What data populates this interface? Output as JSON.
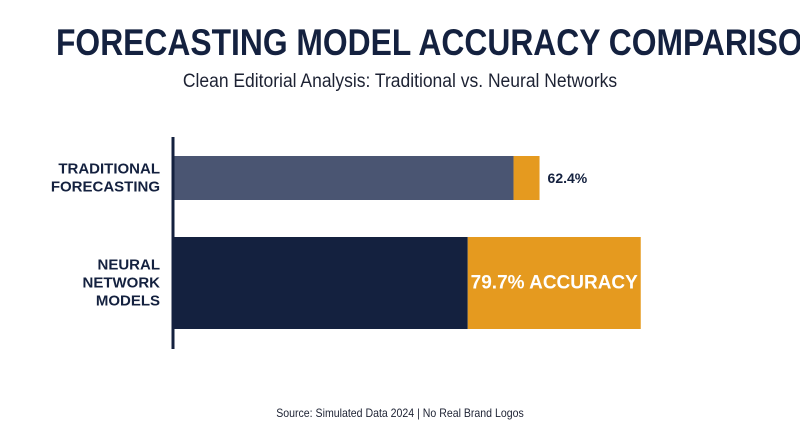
{
  "title": "FORECASTING MODEL ACCURACY COMPARISON",
  "subtitle": "Clean Editorial Analysis: Traditional vs. Neural Networks",
  "source": "Source: Simulated Data 2024 | No Real Brand Logos",
  "colors": {
    "traditional_base": "#4a5572",
    "neural_base": "#14213f",
    "accent": "#e59a1f",
    "axis": "#14213f",
    "text_dark": "#14213f",
    "text_light": "#ffffff"
  },
  "chart_data": {
    "type": "bar",
    "orientation": "horizontal",
    "xlim": [
      0,
      100
    ],
    "categories": [
      [
        "TRADITIONAL",
        "FORECASTING"
      ],
      [
        "NEURAL",
        "NETWORK",
        "MODELS"
      ]
    ],
    "values": [
      62.4,
      79.7
    ],
    "data_labels": [
      "62.4%",
      "79.7% ACCURACY"
    ],
    "grid": false,
    "legend": "none"
  }
}
